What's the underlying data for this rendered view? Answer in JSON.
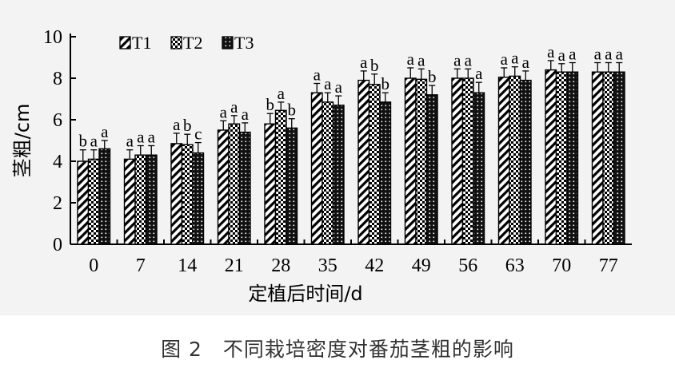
{
  "caption": "图 2　不同栽培密度对番茄茎粗的影响",
  "chart_data": {
    "type": "bar",
    "title": "",
    "xlabel": "定植后时间/d",
    "ylabel": "茎粗/cm",
    "ylim": [
      0,
      10
    ],
    "yticks": [
      0,
      2,
      4,
      6,
      8,
      10
    ],
    "categories": [
      "0",
      "7",
      "14",
      "21",
      "28",
      "35",
      "42",
      "49",
      "56",
      "63",
      "70",
      "77"
    ],
    "legend_position": "top-left",
    "error_bars": true,
    "series": [
      {
        "name": "T1",
        "pattern": "diagonal-stripes",
        "values": [
          4.0,
          4.1,
          4.85,
          5.5,
          5.8,
          7.3,
          7.9,
          8.0,
          8.0,
          8.05,
          8.4,
          8.3
        ],
        "errors": [
          0.55,
          0.45,
          0.5,
          0.45,
          0.5,
          0.45,
          0.45,
          0.5,
          0.45,
          0.45,
          0.45,
          0.45
        ],
        "letters": [
          "b",
          "a",
          "a",
          "a",
          "b",
          "a",
          "a",
          "a",
          "a",
          "a",
          "a",
          "a"
        ]
      },
      {
        "name": "T2",
        "pattern": "checkered",
        "values": [
          4.1,
          4.3,
          4.8,
          5.8,
          6.45,
          6.85,
          7.7,
          7.95,
          8.0,
          8.1,
          8.3,
          8.3
        ],
        "errors": [
          0.45,
          0.45,
          0.5,
          0.4,
          0.4,
          0.45,
          0.5,
          0.5,
          0.45,
          0.45,
          0.4,
          0.45
        ],
        "letters": [
          "a",
          "a",
          "b",
          "a",
          "a",
          "a",
          "b",
          "a",
          "a",
          "a",
          "a",
          "a"
        ]
      },
      {
        "name": "T3",
        "pattern": "dark-dotted",
        "values": [
          4.6,
          4.3,
          4.4,
          5.4,
          5.6,
          6.7,
          6.85,
          7.2,
          7.3,
          7.9,
          8.3,
          8.3
        ],
        "errors": [
          0.4,
          0.45,
          0.5,
          0.45,
          0.45,
          0.45,
          0.45,
          0.45,
          0.5,
          0.45,
          0.45,
          0.45
        ],
        "letters": [
          "a",
          "a",
          "c",
          "a",
          "b",
          "a",
          "b",
          "b",
          "a",
          "a",
          "a",
          "a"
        ]
      }
    ]
  }
}
